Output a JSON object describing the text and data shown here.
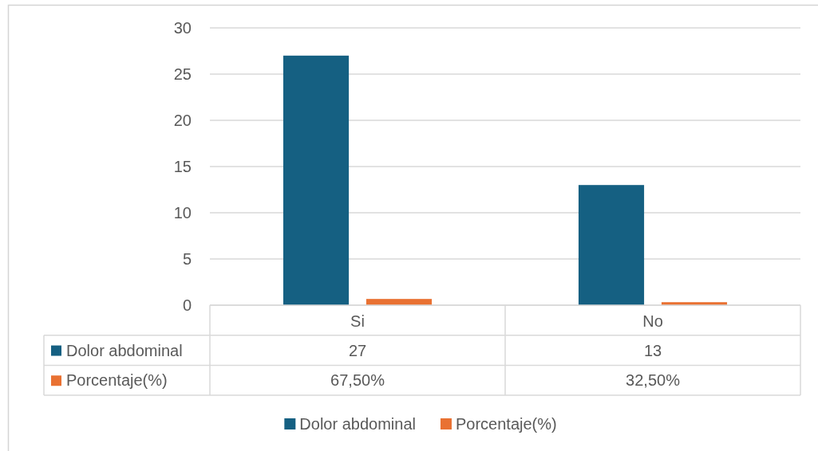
{
  "chart_data": {
    "type": "bar",
    "categories": [
      "Si",
      "No"
    ],
    "series": [
      {
        "name": "Dolor abdominal",
        "color": "#156082",
        "values": [
          27,
          13
        ],
        "value_labels": [
          "27",
          "13"
        ]
      },
      {
        "name": "Porcentaje(%)",
        "color": "#e97132",
        "values": [
          0.675,
          0.325
        ],
        "value_labels": [
          "67,50%",
          "32,50%"
        ]
      }
    ],
    "ylim": [
      0,
      30
    ],
    "yticks": [
      0,
      5,
      10,
      15,
      20,
      25,
      30
    ],
    "grid": "y",
    "legend": "bottom"
  }
}
